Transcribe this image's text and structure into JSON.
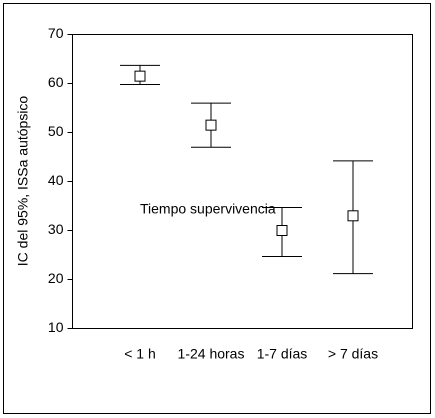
{
  "chart_data": {
    "type": "errorbar",
    "ylabel": "IC del 95%, ISSa autópsico",
    "annotation": "Tiempo supervivencia",
    "categories": [
      "< 1 h",
      "1-24 horas",
      "1-7 días",
      "> 7 días"
    ],
    "series": [
      {
        "values": [
          61.5,
          51.5,
          30,
          33
        ],
        "lower": [
          59.8,
          47,
          24.7,
          21.2
        ],
        "upper": [
          63.7,
          56,
          34.7,
          44.2
        ],
        "color": "#000000"
      }
    ],
    "ylim": [
      10,
      70
    ],
    "yticks": [
      10,
      20,
      30,
      40,
      50,
      60,
      70
    ]
  }
}
